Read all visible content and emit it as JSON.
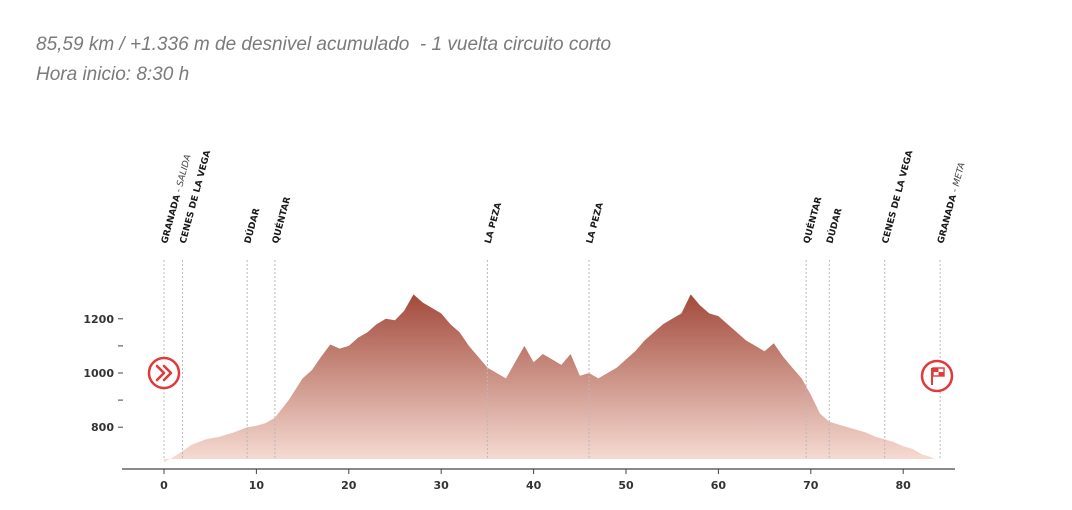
{
  "header": {
    "line1": "85,59 km / +1.336 m de desnivel acumulado  - 1 vuelta circuito corto",
    "line2": "Hora inicio: 8:30 h"
  },
  "icons": {
    "start": "double-chevron-right-icon",
    "finish": "checkered-flag-icon"
  },
  "colors": {
    "profile_top": "#a24a3b",
    "profile_bottom": "#f7ddd5",
    "icon_red": "#e03a3a"
  },
  "chart_data": {
    "type": "area",
    "xlabel": "",
    "ylabel": "",
    "xlim": [
      -4.5,
      86
    ],
    "ylim": [
      660,
      1300
    ],
    "x_ticks": [
      0,
      10,
      20,
      30,
      40,
      50,
      60,
      70,
      80
    ],
    "y_ticks": [
      800,
      900,
      1000,
      1100,
      1200
    ],
    "y_tick_labels": [
      "800",
      "",
      "1000",
      "",
      "1200"
    ],
    "grid": false,
    "series": [
      {
        "x": [
          0,
          1.5,
          3,
          4.5,
          6,
          7.5,
          9,
          10,
          11,
          12,
          13.5,
          15,
          16,
          17,
          18,
          19,
          20,
          21,
          22,
          23,
          24,
          25,
          26,
          27,
          28,
          29,
          30,
          31,
          32,
          33,
          34,
          35,
          36,
          37,
          38,
          39,
          40,
          41,
          42,
          43,
          44,
          45,
          46,
          47,
          48,
          49,
          50,
          51,
          52,
          53,
          54,
          55,
          56,
          57,
          58,
          59,
          60,
          61,
          62,
          63,
          64,
          65,
          66,
          67,
          68,
          69,
          70,
          71,
          72,
          73,
          74,
          75,
          76,
          77,
          78,
          79,
          80,
          81,
          82,
          83,
          83.5
        ],
        "y": [
          670,
          700,
          735,
          755,
          765,
          780,
          800,
          805,
          815,
          835,
          900,
          980,
          1010,
          1060,
          1105,
          1090,
          1100,
          1130,
          1150,
          1180,
          1200,
          1195,
          1230,
          1290,
          1260,
          1240,
          1220,
          1180,
          1150,
          1100,
          1060,
          1020,
          1000,
          980,
          1040,
          1100,
          1040,
          1070,
          1050,
          1030,
          1070,
          990,
          1000,
          980,
          1000,
          1020,
          1050,
          1080,
          1120,
          1150,
          1180,
          1200,
          1220,
          1290,
          1250,
          1220,
          1210,
          1180,
          1150,
          1120,
          1100,
          1080,
          1110,
          1060,
          1020,
          980,
          920,
          850,
          820,
          810,
          800,
          790,
          780,
          765,
          755,
          745,
          730,
          720,
          700,
          690,
          680
        ]
      }
    ],
    "markers": [
      {
        "label": "GRANADA",
        "sublabel": "- SALIDA",
        "x": 0
      },
      {
        "label": "CENES DE LA VEGA",
        "sublabel": "",
        "x": 2
      },
      {
        "label": "DÚDAR",
        "sublabel": "",
        "x": 9
      },
      {
        "label": "QUÉNTAR",
        "sublabel": "",
        "x": 12
      },
      {
        "label": "LA PEZA",
        "sublabel": "",
        "x": 35
      },
      {
        "label": "LA PEZA",
        "sublabel": "",
        "x": 46
      },
      {
        "label": "QUÉNTAR",
        "sublabel": "",
        "x": 69.5
      },
      {
        "label": "DÚDAR",
        "sublabel": "",
        "x": 72
      },
      {
        "label": "CENES DE LA VEGA",
        "sublabel": "",
        "x": 78
      },
      {
        "label": "GRANADA",
        "sublabel": "- META",
        "x": 84
      }
    ]
  }
}
